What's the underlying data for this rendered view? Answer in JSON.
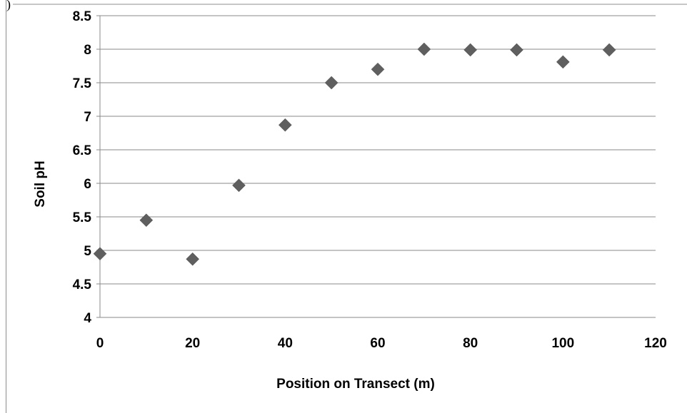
{
  "header": {
    "corner_text": ")"
  },
  "chart_data": {
    "type": "scatter",
    "title": "",
    "xlabel": "Position on Transect (m)",
    "ylabel": "Soil pH",
    "xlim": [
      0,
      120
    ],
    "ylim": [
      4,
      8.5
    ],
    "x_ticks": [
      "0",
      "20",
      "40",
      "60",
      "80",
      "100",
      "120"
    ],
    "y_ticks": [
      "4",
      "4.5",
      "5",
      "5.5",
      "6",
      "6.5",
      "7",
      "7.5",
      "8",
      "8.5"
    ],
    "grid": "horizontal",
    "legend": "none",
    "marker": "diamond",
    "marker_color": "#5f5f5f",
    "series": [
      {
        "points": [
          {
            "x": 0,
            "y": 4.95
          },
          {
            "x": 10,
            "y": 5.45
          },
          {
            "x": 20,
            "y": 4.87
          },
          {
            "x": 30,
            "y": 5.97
          },
          {
            "x": 40,
            "y": 6.87
          },
          {
            "x": 50,
            "y": 7.5
          },
          {
            "x": 60,
            "y": 7.7
          },
          {
            "x": 70,
            "y": 8.0
          },
          {
            "x": 80,
            "y": 7.99
          },
          {
            "x": 90,
            "y": 7.99
          },
          {
            "x": 100,
            "y": 7.81
          },
          {
            "x": 110,
            "y": 7.99
          }
        ]
      }
    ]
  }
}
